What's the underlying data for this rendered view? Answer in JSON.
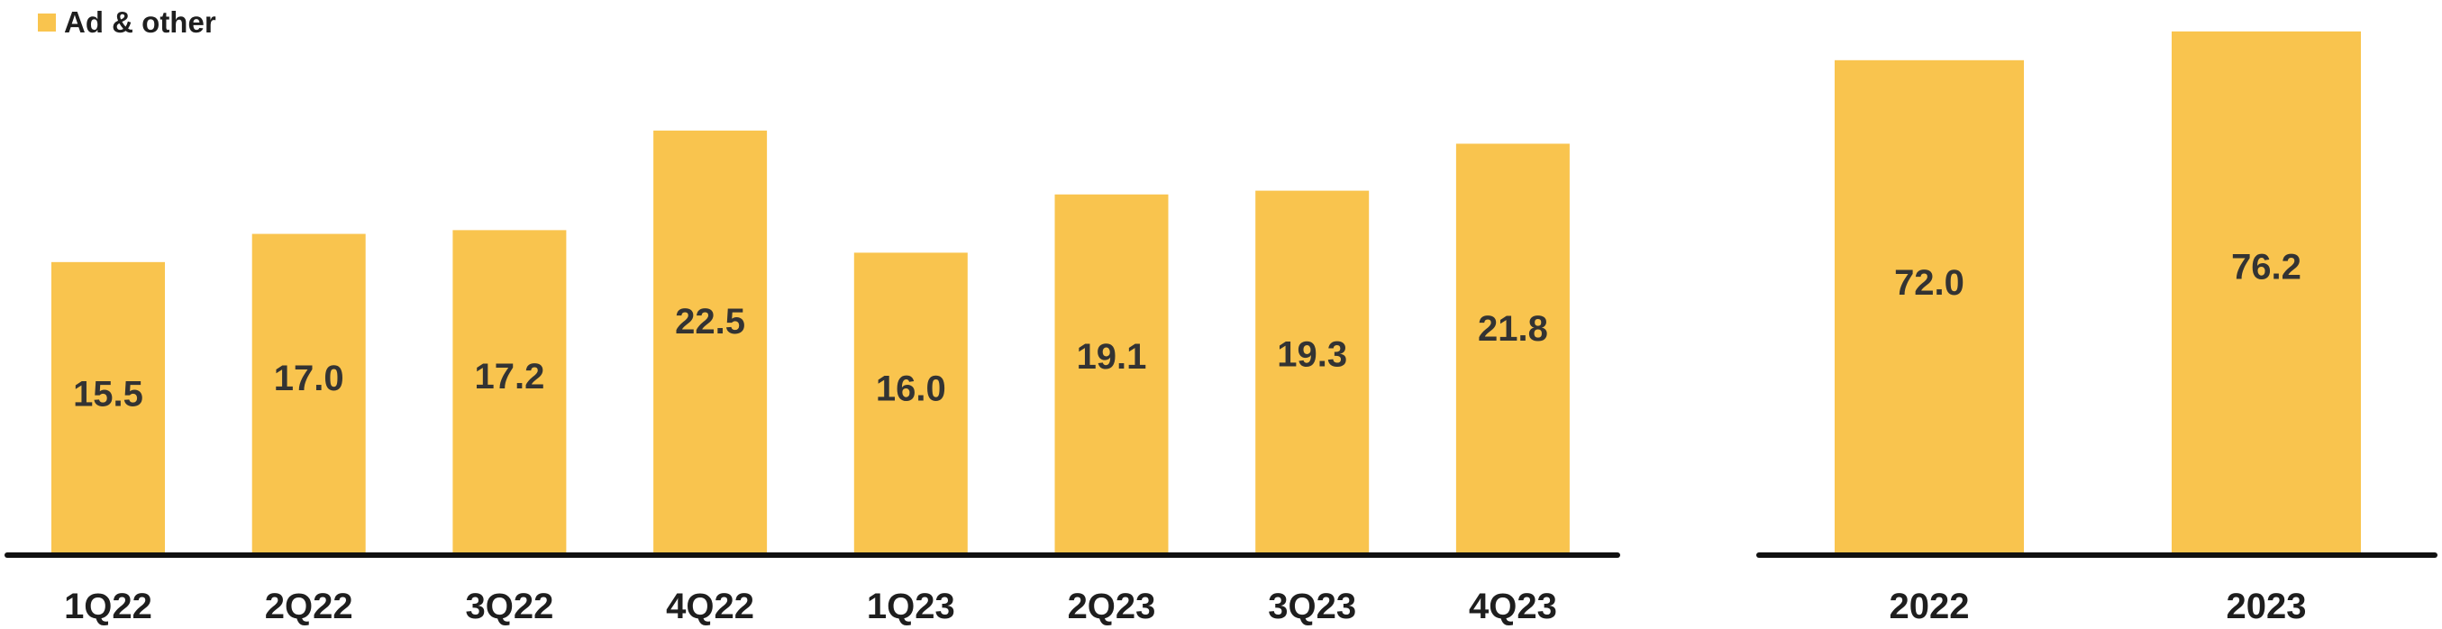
{
  "legend": {
    "label": "Ad & other",
    "color": "#F9C44E"
  },
  "colors": {
    "bar": "#F9C44E",
    "axis": "#111111",
    "label": "#333333"
  },
  "chart_data": [
    {
      "type": "bar",
      "categories": [
        "1Q22",
        "2Q22",
        "3Q22",
        "4Q22",
        "1Q23",
        "2Q23",
        "3Q23",
        "4Q23"
      ],
      "series": [
        {
          "name": "Ad & other",
          "values": [
            15.5,
            17.0,
            17.2,
            22.5,
            16.0,
            19.1,
            19.3,
            21.8
          ]
        }
      ],
      "value_labels": [
        "15.5",
        "17.0",
        "17.2",
        "22.5",
        "16.0",
        "19.1",
        "19.3",
        "21.8"
      ],
      "legend": "top-left",
      "grid": false
    },
    {
      "type": "bar",
      "categories": [
        "2022",
        "2023"
      ],
      "series": [
        {
          "name": "Ad & other",
          "values": [
            72.0,
            76.2
          ]
        }
      ],
      "value_labels": [
        "72.0",
        "76.2"
      ],
      "grid": false
    }
  ]
}
